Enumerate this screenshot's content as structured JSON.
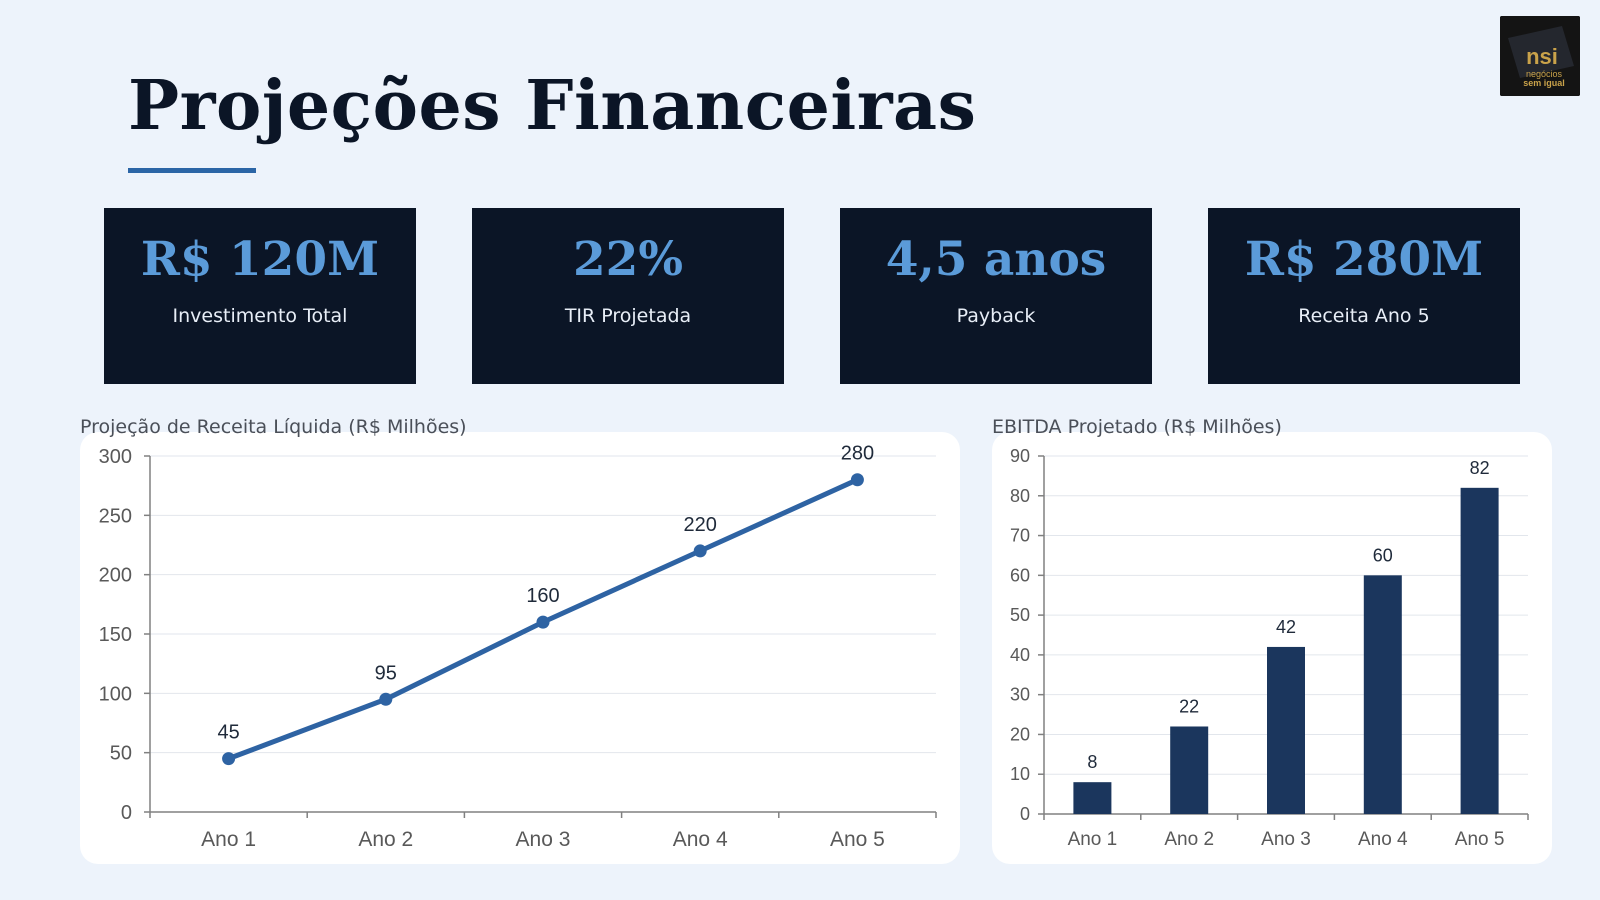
{
  "page": {
    "title": "Projeções Financeiras",
    "logo_text_top": "nsi",
    "logo_text_bottom_1": "negócios",
    "logo_text_bottom_2": "sem igual"
  },
  "colors": {
    "background": "#EDF3FB",
    "dark_navy": "#0B1526",
    "kpi_value": "#5B9BD9",
    "accent_blue": "#2B65A6",
    "bar": "#1B365D"
  },
  "kpis": [
    {
      "value": "R$ 120M",
      "label": "Investimento Total"
    },
    {
      "value": "22%",
      "label": "TIR Projetada"
    },
    {
      "value": "4,5 anos",
      "label": "Payback"
    },
    {
      "value": "R$ 280M",
      "label": "Receita Ano 5"
    }
  ],
  "chart_data": [
    {
      "type": "line",
      "title": "Projeção de Receita Líquida (R$ Milhões)",
      "categories": [
        "Ano 1",
        "Ano 2",
        "Ano 3",
        "Ano 4",
        "Ano 5"
      ],
      "values": [
        45,
        95,
        160,
        220,
        280
      ],
      "ylim": [
        0,
        300
      ],
      "yticks": [
        0,
        50,
        100,
        150,
        200,
        250,
        300
      ],
      "grid": true,
      "data_labels": true
    },
    {
      "type": "bar",
      "title": "EBITDA Projetado (R$ Milhões)",
      "categories": [
        "Ano 1",
        "Ano 2",
        "Ano 3",
        "Ano 4",
        "Ano 5"
      ],
      "values": [
        8,
        22,
        42,
        60,
        82
      ],
      "ylim": [
        0,
        90
      ],
      "yticks": [
        0,
        10,
        20,
        30,
        40,
        50,
        60,
        70,
        80,
        90
      ],
      "grid": true,
      "data_labels": true
    }
  ]
}
